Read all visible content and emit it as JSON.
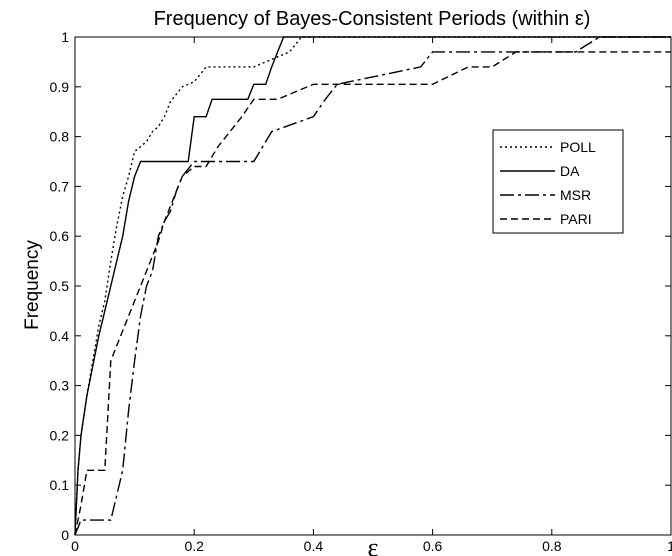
{
  "chart_data": {
    "type": "line",
    "title": "Frequency of Bayes-Consistent Periods (within ε)",
    "xlabel": "ε",
    "ylabel": "Frequency",
    "xlim": [
      0,
      1
    ],
    "ylim": [
      0,
      1
    ],
    "xticks": [
      0,
      0.2,
      0.4,
      0.6,
      0.8,
      1
    ],
    "xtick_labels": [
      "0",
      "0.2",
      "0.4",
      "0.6",
      "0.8",
      "1"
    ],
    "yticks": [
      0,
      0.1,
      0.2,
      0.3,
      0.4,
      0.5,
      0.6,
      0.7,
      0.8,
      0.9,
      1
    ],
    "ytick_labels": [
      "0",
      "0.1",
      "0.2",
      "0.3",
      "0.4",
      "0.5",
      "0.6",
      "0.7",
      "0.8",
      "0.9",
      "1"
    ],
    "grid": false,
    "legend_position": "right",
    "series": [
      {
        "name": "POLL",
        "dash": "dotted",
        "x": [
          0,
          0.005,
          0.01,
          0.02,
          0.03,
          0.04,
          0.05,
          0.06,
          0.07,
          0.08,
          0.09,
          0.1,
          0.11,
          0.12,
          0.13,
          0.14,
          0.15,
          0.16,
          0.18,
          0.2,
          0.22,
          0.3,
          0.32,
          0.36,
          0.38,
          0.4,
          1
        ],
        "y": [
          0,
          0.13,
          0.2,
          0.28,
          0.35,
          0.42,
          0.47,
          0.55,
          0.62,
          0.68,
          0.72,
          0.77,
          0.78,
          0.79,
          0.81,
          0.82,
          0.84,
          0.87,
          0.9,
          0.91,
          0.94,
          0.94,
          0.95,
          0.97,
          1.0,
          1.0,
          1.0
        ]
      },
      {
        "name": "DA",
        "dash": "solid",
        "x": [
          0,
          0.005,
          0.01,
          0.02,
          0.04,
          0.05,
          0.06,
          0.07,
          0.08,
          0.09,
          0.1,
          0.11,
          0.12,
          0.18,
          0.19,
          0.2,
          0.22,
          0.23,
          0.24,
          0.25,
          0.29,
          0.3,
          0.32,
          0.33,
          0.34,
          0.35,
          1
        ],
        "y": [
          0,
          0.13,
          0.2,
          0.28,
          0.4,
          0.45,
          0.5,
          0.55,
          0.6,
          0.67,
          0.72,
          0.75,
          0.75,
          0.75,
          0.75,
          0.84,
          0.84,
          0.875,
          0.875,
          0.875,
          0.875,
          0.905,
          0.905,
          0.94,
          0.97,
          1.0,
          1.0
        ]
      },
      {
        "name": "MSR",
        "dash": "longdash",
        "x": [
          0,
          0.01,
          0.02,
          0.04,
          0.06,
          0.08,
          0.09,
          0.1,
          0.11,
          0.12,
          0.13,
          0.14,
          0.15,
          0.16,
          0.17,
          0.18,
          0.2,
          0.22,
          0.3,
          0.33,
          0.4,
          0.42,
          0.44,
          0.58,
          0.6,
          0.68,
          0.84,
          0.88,
          1
        ],
        "y": [
          0,
          0.03,
          0.03,
          0.03,
          0.03,
          0.13,
          0.25,
          0.35,
          0.44,
          0.5,
          0.53,
          0.6,
          0.63,
          0.65,
          0.69,
          0.72,
          0.75,
          0.75,
          0.75,
          0.81,
          0.84,
          0.875,
          0.905,
          0.94,
          0.97,
          0.97,
          0.97,
          1.0,
          1.0
        ]
      },
      {
        "name": "PARI",
        "dash": "dashed",
        "x": [
          0,
          0.005,
          0.01,
          0.02,
          0.05,
          0.06,
          0.07,
          0.08,
          0.09,
          0.1,
          0.11,
          0.12,
          0.13,
          0.14,
          0.15,
          0.16,
          0.17,
          0.18,
          0.2,
          0.22,
          0.24,
          0.26,
          0.28,
          0.3,
          0.32,
          0.34,
          0.4,
          0.6,
          0.66,
          0.7,
          0.74,
          1
        ],
        "y": [
          0,
          0.03,
          0.06,
          0.13,
          0.13,
          0.35,
          0.38,
          0.41,
          0.44,
          0.47,
          0.5,
          0.53,
          0.56,
          0.59,
          0.63,
          0.66,
          0.69,
          0.72,
          0.74,
          0.74,
          0.78,
          0.81,
          0.84,
          0.875,
          0.875,
          0.875,
          0.905,
          0.905,
          0.94,
          0.94,
          0.97,
          0.97
        ]
      }
    ]
  }
}
